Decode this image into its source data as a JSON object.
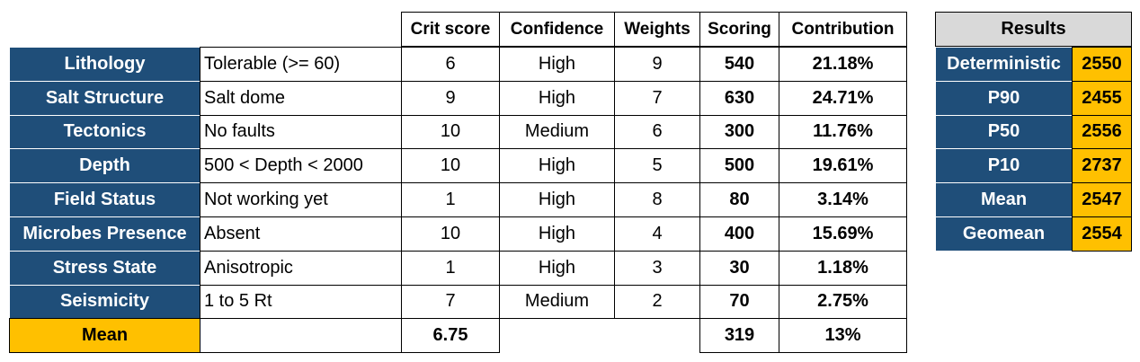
{
  "table": {
    "columns": [
      "Crit score",
      "Confidence",
      "Weights",
      "Scoring",
      "Contribution"
    ],
    "rows": [
      [
        "Lithology",
        "Tolerable (>= 60)",
        "6",
        "High",
        "9",
        "540",
        "21.18%"
      ],
      [
        "Salt Structure",
        "Salt dome",
        "9",
        "High",
        "7",
        "630",
        "24.71%"
      ],
      [
        "Tectonics",
        "No faults",
        "10",
        "Medium",
        "6",
        "300",
        "11.76%"
      ],
      [
        "Depth",
        "500 < Depth < 2000",
        "10",
        "High",
        "5",
        "500",
        "19.61%"
      ],
      [
        "Field Status",
        "Not working yet",
        "1",
        "High",
        "8",
        "80",
        "3.14%"
      ],
      [
        "Microbes Presence",
        "Absent",
        "10",
        "High",
        "4",
        "400",
        "15.69%"
      ],
      [
        "Stress State",
        "Anisotropic",
        "1",
        "High",
        "3",
        "30",
        "1.18%"
      ],
      [
        "Seismicity",
        "1 to 5 Rt",
        "7",
        "Medium",
        "2",
        "70",
        "2.75%"
      ]
    ],
    "mean": {
      "label": "Mean",
      "crit_score": "6.75",
      "scoring": "319",
      "contribution": "13%"
    }
  },
  "results": {
    "title": "Results",
    "rows": [
      [
        "Deterministic",
        "2550"
      ],
      [
        "P90",
        "2455"
      ],
      [
        "P50",
        "2556"
      ],
      [
        "P10",
        "2737"
      ],
      [
        "Mean",
        "2547"
      ],
      [
        "Geomean",
        "2554"
      ]
    ]
  }
}
